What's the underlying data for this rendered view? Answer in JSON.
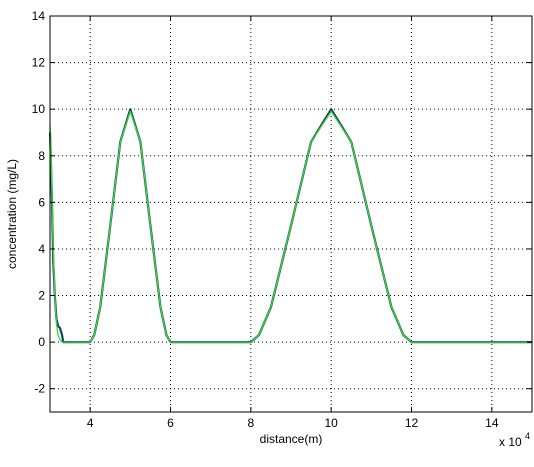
{
  "chart_data": {
    "type": "line",
    "title": "",
    "xlabel": "distance(m)",
    "ylabel": "concentration (mg/L)",
    "x_multiplier_label": "x 10",
    "x_multiplier_exp": "4",
    "xlim": [
      3,
      15
    ],
    "ylim": [
      -3,
      14
    ],
    "x_ticks": [
      4,
      6,
      8,
      10,
      12,
      14
    ],
    "y_ticks": [
      -2,
      0,
      2,
      4,
      6,
      8,
      10,
      12,
      14
    ],
    "x_tick_labels": [
      "4",
      "6",
      "8",
      "10",
      "12",
      "14"
    ],
    "y_tick_labels": [
      "-2",
      "0",
      "2",
      "4",
      "6",
      "8",
      "10",
      "12",
      "14"
    ],
    "grid": true,
    "x_scale_note": "x values shown in units of 10^4 m",
    "series": [
      {
        "color": "#1f3f66",
        "x": [
          3.0,
          3.02,
          3.05,
          3.08,
          3.12,
          3.16,
          3.2,
          3.25,
          3.3,
          3.33,
          3.36,
          4.0,
          4.1,
          4.25,
          4.5,
          4.75,
          5.0,
          5.25,
          5.5,
          5.75,
          5.9,
          6.0,
          6.1,
          8.0,
          8.2,
          8.5,
          9.0,
          9.5,
          10.0,
          10.5,
          11.0,
          11.5,
          11.8,
          12.0,
          12.1,
          15.0
        ],
        "y": [
          9.0,
          8.0,
          6.0,
          3.5,
          2.0,
          1.0,
          0.7,
          0.6,
          0.3,
          0.0,
          0.0,
          0.0,
          0.3,
          1.5,
          5.0,
          8.6,
          10.0,
          8.6,
          5.0,
          1.5,
          0.3,
          0.0,
          0.0,
          0.0,
          0.3,
          1.5,
          5.0,
          8.6,
          10.0,
          8.6,
          5.0,
          1.5,
          0.3,
          0.0,
          0.0,
          0.0
        ]
      },
      {
        "color": "#33dd33",
        "x": [
          3.0,
          3.02,
          3.05,
          3.08,
          3.12,
          3.16,
          3.2,
          3.25,
          3.3,
          4.0,
          4.1,
          4.25,
          4.5,
          4.75,
          5.0,
          5.25,
          5.5,
          5.75,
          5.9,
          6.0,
          6.1,
          8.0,
          8.2,
          8.5,
          9.0,
          9.5,
          10.0,
          10.5,
          11.0,
          11.5,
          11.8,
          12.0,
          12.1,
          15.0
        ],
        "y": [
          9.3,
          8.5,
          6.5,
          4.0,
          2.0,
          0.8,
          0.3,
          0.1,
          0.0,
          0.0,
          0.3,
          1.5,
          5.0,
          8.6,
          9.9,
          8.6,
          5.0,
          1.5,
          0.3,
          0.0,
          0.0,
          0.0,
          0.3,
          1.5,
          5.0,
          8.6,
          9.9,
          8.6,
          5.0,
          1.5,
          0.3,
          0.0,
          0.0,
          0.0
        ]
      }
    ]
  }
}
